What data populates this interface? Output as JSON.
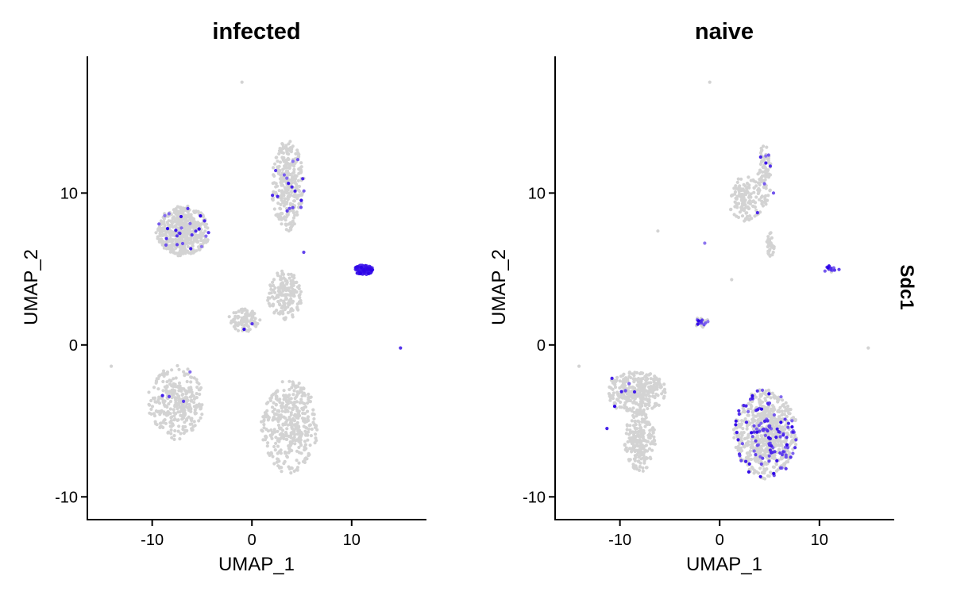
{
  "figure": {
    "feature": "Sdc1"
  },
  "chart_data": [
    {
      "type": "scatter",
      "title": "infected",
      "xlabel": "UMAP_1",
      "ylabel": "UMAP_2",
      "xlim": [
        -16.5,
        17.5
      ],
      "ylim": [
        -11.5,
        19
      ],
      "xticks": [
        -10,
        0,
        10
      ],
      "yticks": [
        -10,
        0,
        10
      ],
      "grid": false,
      "low_color": "#d3d3d3",
      "high_color": "#2a00e8",
      "clusters": [
        {
          "cx": -6.9,
          "cy": 7.5,
          "rx": 2.5,
          "ry": 1.5,
          "n": 520,
          "expr": 0.04
        },
        {
          "cx": 3.6,
          "cy": 10.5,
          "rx": 1.5,
          "ry": 2.7,
          "n": 330,
          "expr": 0.05
        },
        {
          "cx": 3.3,
          "cy": 3.3,
          "rx": 1.6,
          "ry": 1.5,
          "n": 170,
          "expr": 0.0
        },
        {
          "cx": -0.8,
          "cy": 1.6,
          "rx": 1.5,
          "ry": 0.7,
          "n": 90,
          "expr": 0.01
        },
        {
          "cx": -7.6,
          "cy": -3.8,
          "rx": 2.6,
          "ry": 2.2,
          "n": 320,
          "expr": 0.02
        },
        {
          "cx": 3.8,
          "cy": -5.4,
          "rx": 2.6,
          "ry": 2.8,
          "n": 400,
          "expr": 0.0
        },
        {
          "cx": 11.2,
          "cy": 4.95,
          "rx": 0.85,
          "ry": 0.3,
          "n": 160,
          "expr": 1.0
        }
      ],
      "outliers": [
        {
          "x": -1.0,
          "y": 17.3,
          "v": 0.0
        },
        {
          "x": -14.1,
          "y": -1.4,
          "v": 0.0
        },
        {
          "x": 14.9,
          "y": -0.2,
          "v": 0.7
        },
        {
          "x": -8.3,
          "y": -3.4,
          "v": 0.6
        },
        {
          "x": 5.2,
          "y": 6.1,
          "v": 0.6
        },
        {
          "x": 4.6,
          "y": 12.2,
          "v": 0.5
        },
        {
          "x": -7.5,
          "y": 6.6,
          "v": 0.6
        }
      ]
    },
    {
      "type": "scatter",
      "title": "naive",
      "xlabel": "UMAP_1",
      "ylabel": "UMAP_2",
      "xlim": [
        -16.5,
        17.5
      ],
      "ylim": [
        -11.5,
        19
      ],
      "xticks": [
        -10,
        0,
        10
      ],
      "yticks": [
        -10,
        0,
        10
      ],
      "grid": false,
      "low_color": "#d3d3d3",
      "high_color": "#2a00e8",
      "clusters": [
        {
          "cx": 4.5,
          "cy": 11.2,
          "rx": 0.6,
          "ry": 2.0,
          "n": 90,
          "expr": 0.04
        },
        {
          "cx": 2.6,
          "cy": 9.6,
          "rx": 1.6,
          "ry": 1.4,
          "n": 130,
          "expr": 0.01
        },
        {
          "cx": 5.1,
          "cy": 6.6,
          "rx": 0.35,
          "ry": 0.8,
          "n": 35,
          "expr": 0.0
        },
        {
          "cx": -8.4,
          "cy": -3.1,
          "rx": 2.8,
          "ry": 1.3,
          "n": 340,
          "expr": 0.01
        },
        {
          "cx": -8.0,
          "cy": -6.3,
          "rx": 1.4,
          "ry": 1.9,
          "n": 200,
          "expr": 0.0
        },
        {
          "cx": -1.8,
          "cy": 1.5,
          "rx": 0.6,
          "ry": 0.35,
          "n": 35,
          "expr": 0.3
        },
        {
          "cx": 4.6,
          "cy": -5.9,
          "rx": 2.9,
          "ry": 2.7,
          "n": 750,
          "expr": 0.15
        },
        {
          "cx": 11.2,
          "cy": 5.0,
          "rx": 0.8,
          "ry": 0.2,
          "n": 16,
          "expr": 0.85
        }
      ],
      "outliers": [
        {
          "x": -14.1,
          "y": -1.4,
          "v": 0.0
        },
        {
          "x": 14.9,
          "y": -0.2,
          "v": 0.0
        },
        {
          "x": -1.0,
          "y": 17.3,
          "v": 0.0
        },
        {
          "x": -6.2,
          "y": 7.5,
          "v": 0.0
        },
        {
          "x": -1.5,
          "y": 6.7,
          "v": 0.3
        },
        {
          "x": 1.2,
          "y": 4.3,
          "v": 0.0
        },
        {
          "x": -10.8,
          "y": -2.2,
          "v": 0.8
        },
        {
          "x": -11.3,
          "y": -5.5,
          "v": 0.8
        },
        {
          "x": 4.9,
          "y": 12.5,
          "v": 0.5
        },
        {
          "x": 5.4,
          "y": 10.0,
          "v": 0.5
        }
      ]
    }
  ]
}
